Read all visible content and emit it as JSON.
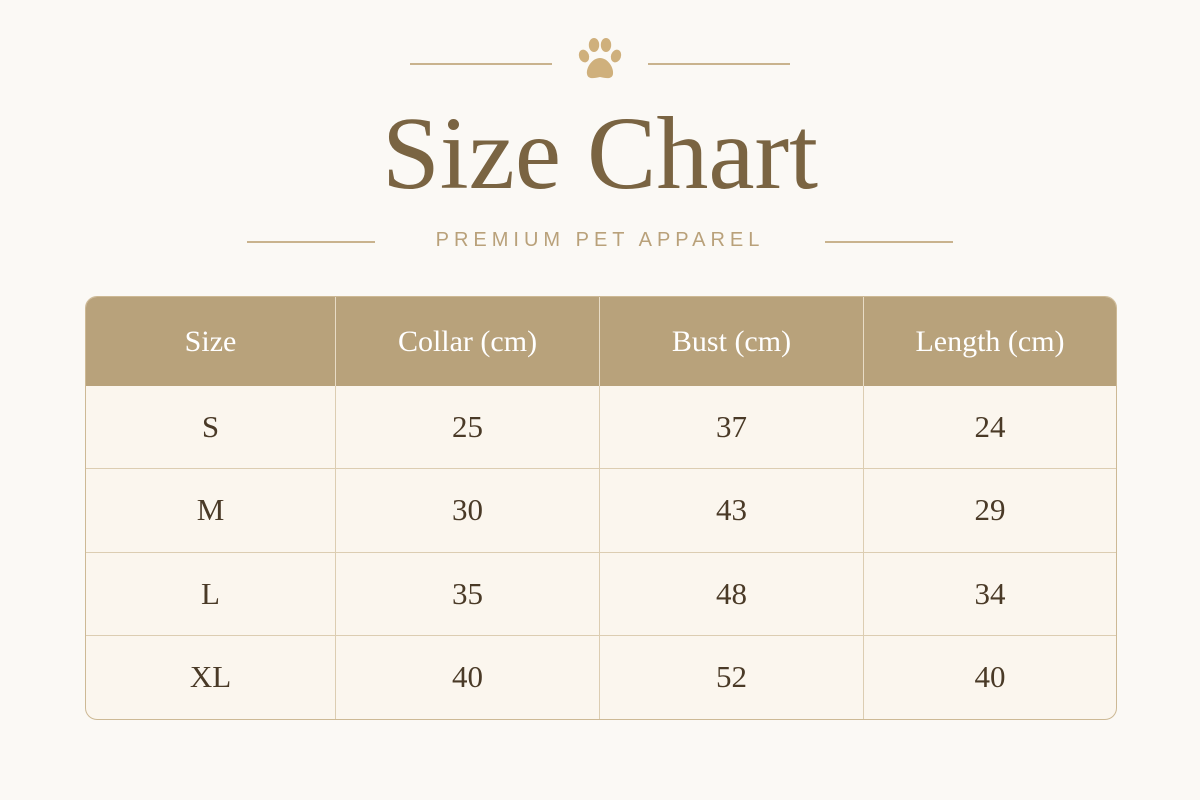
{
  "header": {
    "title": "Size Chart",
    "subtitle": "PREMIUM PET APPAREL"
  },
  "table": {
    "columns": [
      "Size",
      "Collar (cm)",
      "Bust (cm)",
      "Length (cm)"
    ],
    "rows": [
      [
        "S",
        25,
        37,
        24
      ],
      [
        "M",
        30,
        43,
        29
      ],
      [
        "L",
        35,
        48,
        34
      ],
      [
        "XL",
        40,
        52,
        40
      ]
    ]
  }
}
